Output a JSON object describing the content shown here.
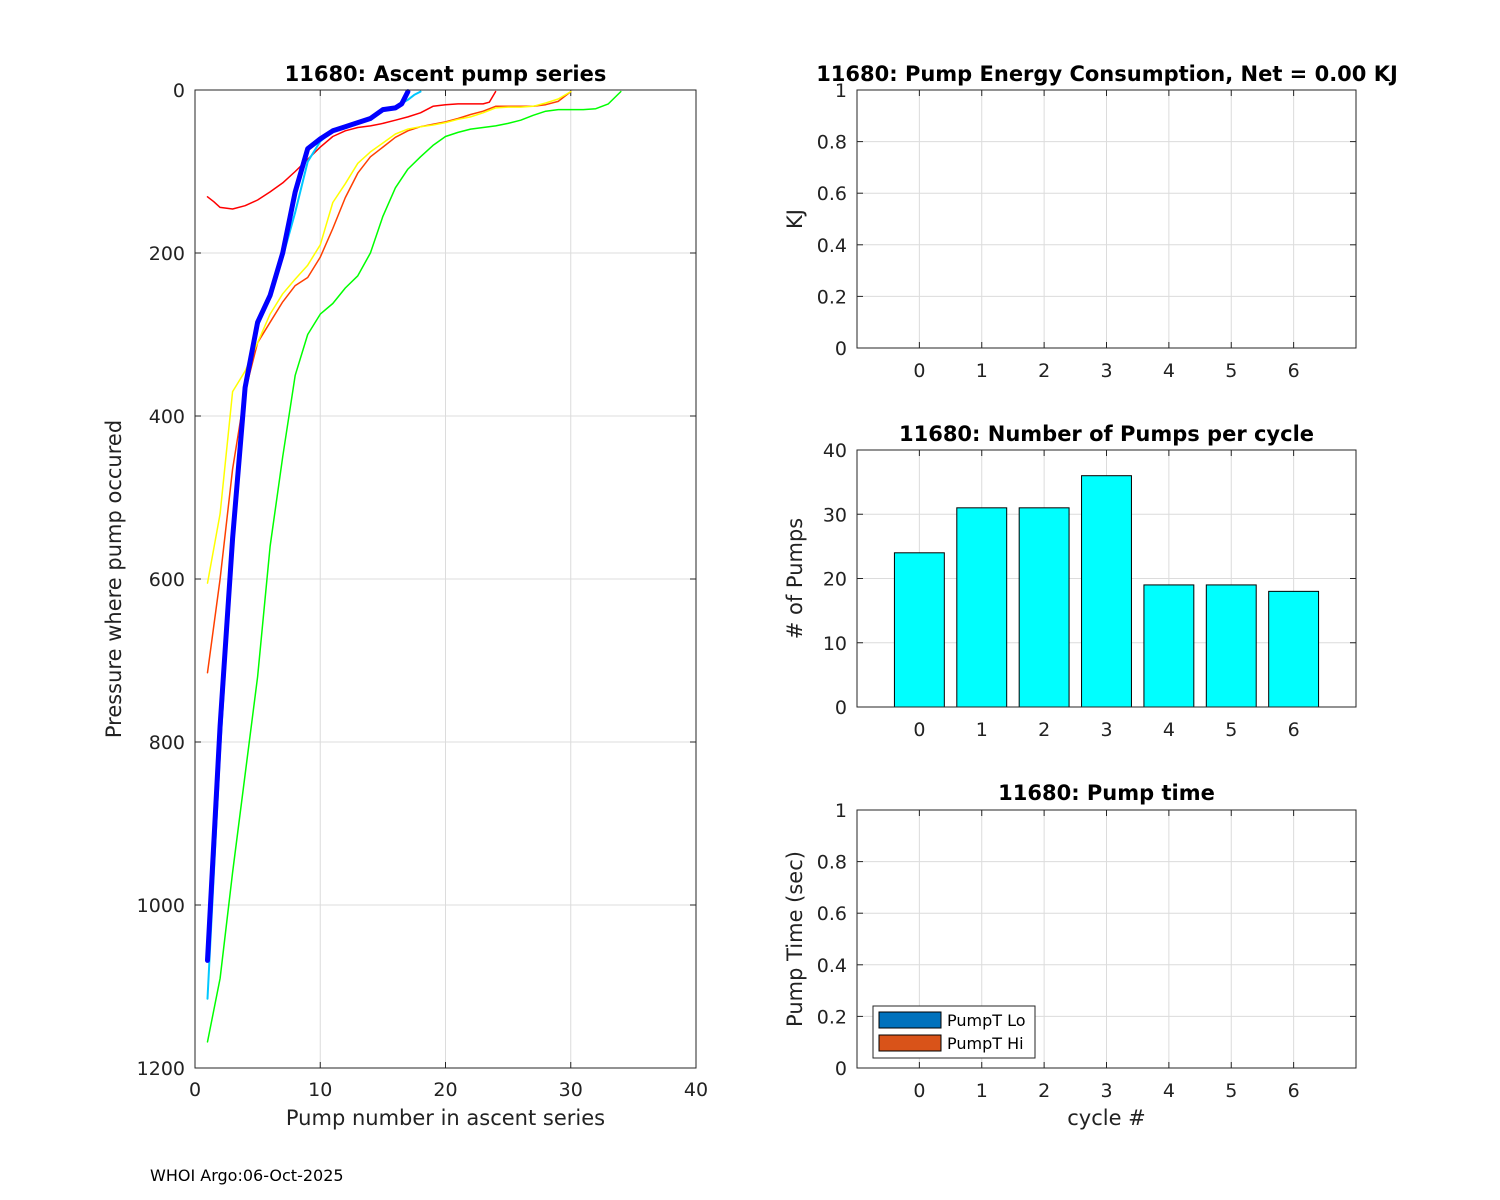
{
  "footer": "WHOI Argo:06-Oct-2025",
  "chart_data": [
    {
      "id": "ascent",
      "type": "line",
      "title": "11680: Ascent pump series",
      "xlabel": "Pump number in ascent series",
      "ylabel": "Pressure where pump occured",
      "xlim": [
        0,
        40
      ],
      "ylim": [
        0,
        1200
      ],
      "y_reversed": true,
      "xticks": [
        0,
        10,
        20,
        30,
        40
      ],
      "yticks": [
        0,
        200,
        400,
        600,
        800,
        1000,
        1200
      ],
      "grid": true,
      "series": [
        {
          "color": "#00ff00",
          "width": 1.5,
          "x": [
            1,
            2,
            3,
            4,
            5,
            6,
            7,
            8,
            9,
            10,
            11,
            12,
            13,
            14,
            15,
            16,
            17,
            18,
            19,
            20,
            21,
            22,
            23,
            24,
            25,
            26,
            27,
            28,
            29,
            30,
            31,
            32,
            33,
            34
          ],
          "y": [
            1168,
            1090,
            960,
            840,
            720,
            560,
            450,
            350,
            300,
            275,
            262,
            243,
            228,
            200,
            155,
            120,
            97,
            82,
            68,
            57,
            52,
            48,
            46,
            44,
            41,
            37,
            31,
            26,
            24,
            24,
            24,
            23,
            17,
            2
          ]
        },
        {
          "color": "#ff0000",
          "width": 1.5,
          "x": [
            1,
            1.5,
            2,
            3,
            4,
            5,
            6,
            7,
            8,
            9,
            10,
            11,
            12,
            13,
            14,
            15,
            16,
            17,
            18,
            19,
            20,
            21,
            22,
            23,
            23.5,
            24
          ],
          "y": [
            131,
            137,
            144,
            146,
            142,
            135,
            125,
            114,
            100,
            85,
            70,
            57,
            50,
            46,
            44,
            41,
            37,
            33,
            28,
            20,
            18,
            17,
            17,
            17,
            15,
            2
          ]
        },
        {
          "color": "#ff4000",
          "width": 1.5,
          "x": [
            1,
            2,
            3,
            4,
            5,
            6,
            7,
            8,
            9,
            10,
            11,
            12,
            13,
            14,
            15,
            16,
            17,
            18,
            19,
            20,
            21,
            22,
            23,
            24,
            25,
            26,
            27,
            28,
            29,
            30
          ],
          "y": [
            715,
            600,
            465,
            370,
            310,
            285,
            260,
            240,
            230,
            205,
            170,
            132,
            102,
            82,
            70,
            58,
            50,
            45,
            42,
            39,
            35,
            30,
            26,
            20,
            20,
            20,
            20,
            18,
            14,
            2
          ]
        },
        {
          "color": "#ffff00",
          "width": 1.5,
          "x": [
            1,
            2,
            3,
            4,
            5,
            6,
            7,
            8,
            9,
            10,
            11,
            12,
            13,
            14,
            15,
            16,
            17,
            18,
            19,
            20,
            21,
            22,
            23,
            24,
            25,
            26,
            27,
            28,
            29,
            30
          ],
          "y": [
            605,
            520,
            370,
            345,
            310,
            275,
            250,
            232,
            215,
            190,
            138,
            115,
            90,
            76,
            65,
            54,
            48,
            45,
            43,
            40,
            36,
            33,
            28,
            22,
            21,
            21,
            20,
            16,
            11,
            2
          ]
        },
        {
          "color": "#00c8ff",
          "width": 2,
          "x": [
            1,
            2,
            3,
            4,
            5,
            6,
            7,
            8,
            9,
            10,
            11,
            12,
            13,
            14,
            15,
            16,
            17,
            17.5,
            18
          ],
          "y": [
            1115,
            810,
            560,
            360,
            290,
            255,
            205,
            150,
            88,
            63,
            50,
            46,
            40,
            35,
            24,
            21,
            12,
            6,
            2
          ]
        },
        {
          "color": "#0000ff",
          "width": 5,
          "x": [
            1,
            2,
            3,
            4,
            5,
            6,
            7,
            8,
            9,
            10,
            11,
            12,
            13,
            14,
            15,
            16,
            16.5,
            17
          ],
          "y": [
            1068,
            780,
            550,
            365,
            285,
            252,
            200,
            125,
            72,
            60,
            50,
            45,
            40,
            35,
            24,
            22,
            17,
            2
          ]
        }
      ]
    },
    {
      "id": "energy",
      "type": "bar",
      "title": "11680: Pump Energy Consumption,  Net =   0.00 KJ",
      "xlabel": "",
      "ylabel": "KJ",
      "categories": [
        "0",
        "1",
        "2",
        "3",
        "4",
        "5",
        "6"
      ],
      "values": [
        0,
        0,
        0,
        0,
        0,
        0,
        0
      ],
      "ylim": [
        0,
        1
      ],
      "yticks": [
        0,
        0.2,
        0.4,
        0.6,
        0.8,
        1
      ],
      "grid": true
    },
    {
      "id": "pumps",
      "type": "bar",
      "title": "11680: Number of Pumps per cycle",
      "xlabel": "",
      "ylabel": "# of Pumps",
      "categories": [
        "0",
        "1",
        "2",
        "3",
        "4",
        "5",
        "6"
      ],
      "values": [
        24,
        31,
        31,
        36,
        19,
        19,
        18
      ],
      "bar_color": "#00ffff",
      "ylim": [
        0,
        40
      ],
      "yticks": [
        0,
        10,
        20,
        30,
        40
      ],
      "grid": true
    },
    {
      "id": "pumptime",
      "type": "bar",
      "title": "11680: Pump time",
      "xlabel": "cycle #",
      "ylabel": "Pump Time (sec)",
      "categories": [
        "0",
        "1",
        "2",
        "3",
        "4",
        "5",
        "6"
      ],
      "series": [
        {
          "name": "PumpT Lo",
          "color": "#0072bd",
          "values": [
            0,
            0,
            0,
            0,
            0,
            0,
            0
          ]
        },
        {
          "name": "PumpT Hi",
          "color": "#d95319",
          "values": [
            0,
            0,
            0,
            0,
            0,
            0,
            0
          ]
        }
      ],
      "ylim": [
        0,
        1
      ],
      "yticks": [
        0,
        0.2,
        0.4,
        0.6,
        0.8,
        1
      ],
      "legend": "bottom-left",
      "grid": true
    }
  ]
}
